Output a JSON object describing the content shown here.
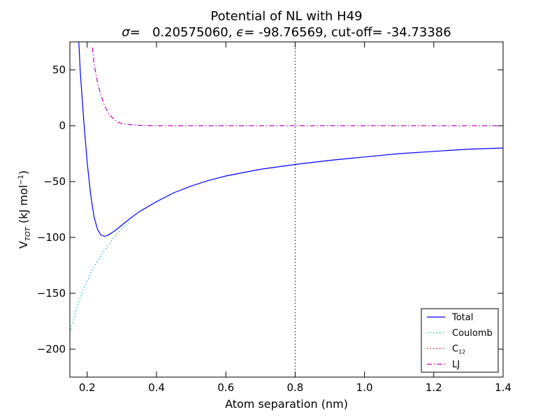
{
  "chart_data": {
    "type": "line",
    "title": "Potential of NL with H49",
    "subtitle": {
      "sigma_symbol": "σ",
      "sigma_text": "=   0.20575060, ",
      "epsilon_symbol": "ϵ",
      "epsilon_text": "= -98.76569, cut-off= -34.73386"
    },
    "xlabel": "Atom separation (nm)",
    "ylabel": {
      "main": "V",
      "sub": "TOT",
      "unit": " (kJ mol",
      "sup": "−1",
      "close": ")"
    },
    "xlim": [
      0.15,
      1.4
    ],
    "ylim": [
      -225,
      75
    ],
    "x_ticks": [
      0.2,
      0.4,
      0.6,
      0.8,
      1.0,
      1.2,
      1.4
    ],
    "x_tick_labels": [
      "0.2",
      "0.4",
      "0.6",
      "0.8",
      "1.0",
      "1.2",
      "1.4"
    ],
    "y_ticks": [
      50,
      0,
      -50,
      -100,
      -150,
      -200
    ],
    "y_tick_labels": [
      "50",
      "0",
      "−50",
      "−100",
      "−150",
      "−200"
    ],
    "grid": false,
    "cutoff_x": 0.8,
    "legend_position": "lower-right",
    "series": [
      {
        "name": "Total",
        "style": "solid",
        "color": "#0000ff",
        "x": [
          0.175,
          0.18,
          0.19,
          0.2,
          0.21,
          0.22,
          0.23,
          0.24,
          0.25,
          0.26,
          0.27,
          0.28,
          0.3,
          0.32,
          0.35,
          0.4,
          0.45,
          0.5,
          0.55,
          0.6,
          0.7,
          0.8,
          0.9,
          1.0,
          1.1,
          1.2,
          1.3,
          1.4
        ],
        "y": [
          80,
          48,
          5,
          -33,
          -62,
          -82,
          -93,
          -98,
          -99,
          -98,
          -96,
          -94,
          -89,
          -84,
          -77,
          -68,
          -60,
          -54,
          -49,
          -45,
          -39,
          -34.7,
          -31,
          -28,
          -25,
          -23,
          -21,
          -20
        ]
      },
      {
        "name": "Coulomb",
        "style": "dotted",
        "color": "#00bfbf",
        "x": [
          0.15,
          0.16,
          0.17,
          0.18,
          0.19,
          0.2,
          0.21,
          0.22,
          0.24,
          0.26,
          0.28,
          0.3,
          0.32
        ],
        "y": [
          -185,
          -174,
          -163,
          -154,
          -146,
          -139,
          -132,
          -126,
          -116,
          -107,
          -99,
          -92,
          -87
        ]
      },
      {
        "name": "C12",
        "style": "dotted",
        "color": "#bf0000",
        "x": [],
        "y": []
      },
      {
        "name": "LJ",
        "style": "dashdot",
        "color": "#bf00bf",
        "x": [
          0.215,
          0.22,
          0.23,
          0.24,
          0.25,
          0.26,
          0.27,
          0.28,
          0.29,
          0.3,
          0.32,
          0.35,
          0.4,
          0.5,
          0.6,
          0.8,
          1.0,
          1.2,
          1.4
        ],
        "y": [
          70,
          55,
          38,
          27,
          18,
          12,
          8,
          5,
          3,
          2,
          1,
          0.3,
          0,
          0,
          0,
          0,
          0,
          0,
          0
        ]
      }
    ],
    "legend_entries": [
      {
        "label": "Total",
        "sub": ""
      },
      {
        "label": "Coulomb",
        "sub": ""
      },
      {
        "label": "C",
        "sub": "12"
      },
      {
        "label": "LJ",
        "sub": ""
      }
    ]
  }
}
